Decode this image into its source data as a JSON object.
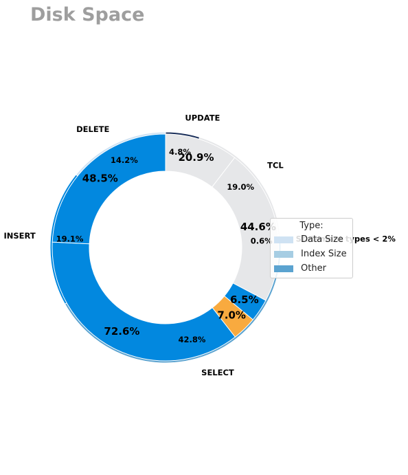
{
  "title": "Disk Space",
  "chart_data": {
    "type": "pie",
    "style": "nested-donut",
    "legend_title": "Type:",
    "legend_placement": "right",
    "legend": [
      {
        "label": "Data Size",
        "color": "#cfe2f3"
      },
      {
        "label": "Index Size",
        "color": "#a6cde3"
      },
      {
        "label": "Other",
        "color": "#5ba3d0"
      }
    ],
    "outer_ring": [
      {
        "name": "UPDATE",
        "value": 4.8,
        "label": "4.8%",
        "color": "#1a2f5a"
      },
      {
        "name": "TCL",
        "value": 19.0,
        "label": "19.0%",
        "color": "#e6e7e9"
      },
      {
        "name": "Statement types < 2%",
        "value": 0.6,
        "label": "0.6%",
        "color": "#4a90c8"
      },
      {
        "name": "SELECT",
        "value": 42.8,
        "label": "42.8%",
        "color": "#5ba3d0"
      },
      {
        "name": "INSERT",
        "value": 19.1,
        "label": "19.1%",
        "color": "#0288df"
      },
      {
        "name": "DELETE",
        "value": 14.2,
        "label": "14.2%",
        "color": "#cfe2f3"
      }
    ],
    "inner_ring": [
      {
        "value": 20.9,
        "label": "20.9%",
        "color": "#e6e7e9"
      },
      {
        "value": 44.6,
        "label": "44.6%",
        "color": "#e6e7e9"
      },
      {
        "value": 6.5,
        "label": "6.5%",
        "color": "#0288df"
      },
      {
        "value": 7.0,
        "label": "7.0%",
        "color": "#f8aa3f"
      },
      {
        "value": 72.6,
        "label": "72.6%",
        "color": "#0288df"
      },
      {
        "value": 48.5,
        "label": "48.5%",
        "color": "#0288df"
      }
    ]
  }
}
